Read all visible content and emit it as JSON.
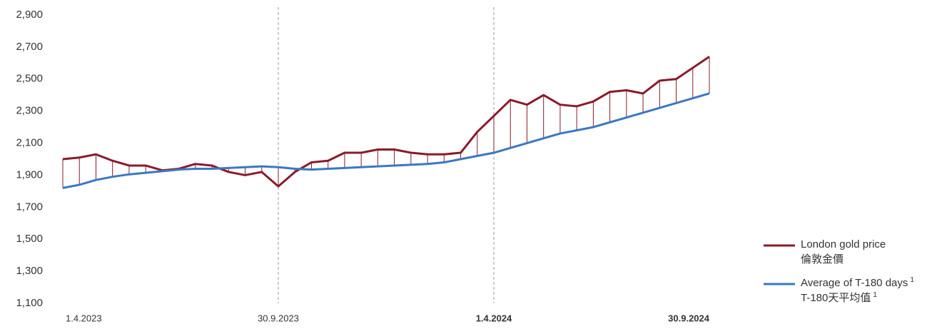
{
  "chart_data": {
    "type": "line",
    "categories": [
      "1.4.2023",
      null,
      null,
      null,
      null,
      null,
      null,
      null,
      null,
      null,
      null,
      null,
      null,
      "30.9.2023",
      null,
      null,
      null,
      null,
      null,
      null,
      null,
      null,
      null,
      null,
      null,
      null,
      "1.4.2024",
      null,
      null,
      null,
      null,
      null,
      null,
      null,
      null,
      null,
      null,
      null,
      null,
      "30.9.2024"
    ],
    "series": [
      {
        "name": "London gold price",
        "name_zh": "倫敦金價",
        "color": "#8b1a2b",
        "values": [
          2000,
          2010,
          2030,
          1990,
          1960,
          1960,
          1930,
          1940,
          1970,
          1960,
          1920,
          1900,
          1920,
          1830,
          1920,
          1980,
          1990,
          2040,
          2040,
          2060,
          2060,
          2040,
          2030,
          2030,
          2040,
          2170,
          2270,
          2370,
          2340,
          2400,
          2340,
          2330,
          2360,
          2420,
          2430,
          2410,
          2490,
          2500,
          2570,
          2640
        ]
      },
      {
        "name": "Average of T-180 days",
        "name_zh": "T-180天平均值",
        "note_mark": "1",
        "color": "#3a78c2",
        "values": [
          1820,
          1840,
          1870,
          1890,
          1905,
          1915,
          1925,
          1935,
          1940,
          1940,
          1945,
          1950,
          1955,
          1950,
          1940,
          1935,
          1940,
          1945,
          1950,
          1955,
          1960,
          1965,
          1970,
          1980,
          2000,
          2020,
          2040,
          2070,
          2100,
          2130,
          2160,
          2180,
          2200,
          2230,
          2260,
          2290,
          2320,
          2350,
          2380,
          2410
        ]
      }
    ],
    "ylim": [
      1100,
      2900
    ],
    "yticks": [
      {
        "value": 1100,
        "label": "1,100"
      },
      {
        "value": 1300,
        "label": "1,300"
      },
      {
        "value": 1500,
        "label": "1,500"
      },
      {
        "value": 1700,
        "label": "1,700"
      },
      {
        "value": 1900,
        "label": "1,900"
      },
      {
        "value": 2100,
        "label": "2,100"
      },
      {
        "value": 2300,
        "label": "2,300"
      },
      {
        "value": 2500,
        "label": "2,500"
      },
      {
        "value": 2700,
        "label": "2,700"
      },
      {
        "value": 2900,
        "label": "2,900"
      }
    ],
    "legend": "bottom-right"
  }
}
